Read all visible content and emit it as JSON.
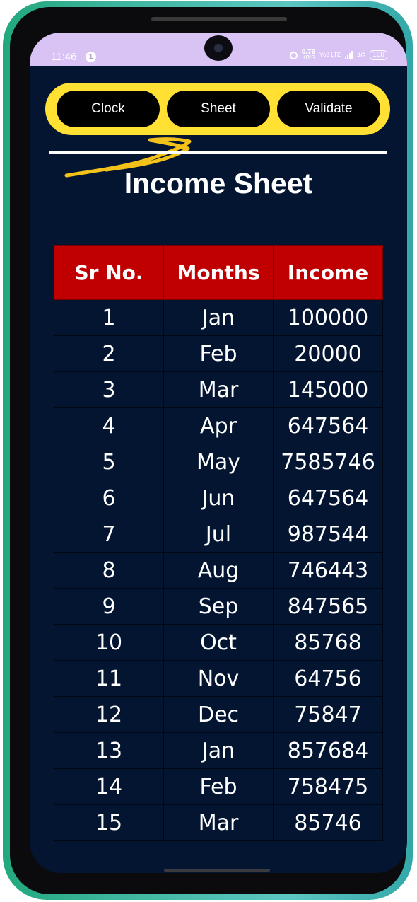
{
  "status_bar": {
    "time": "11:46",
    "notification_count": "1",
    "net_speed_value": "0.76",
    "net_speed_unit": "KB/S",
    "volte": "Vo8 LTE",
    "network_type": "4G",
    "battery": "100"
  },
  "nav": {
    "clock_label": "Clock",
    "sheet_label": "Sheet",
    "validate_label": "Validate"
  },
  "page": {
    "title": "Income Sheet"
  },
  "table": {
    "headers": [
      "Sr No.",
      "Months",
      "Income"
    ],
    "rows": [
      [
        "1",
        "Jan",
        "100000"
      ],
      [
        "2",
        "Feb",
        "20000"
      ],
      [
        "3",
        "Mar",
        "145000"
      ],
      [
        "4",
        "Apr",
        "647564"
      ],
      [
        "5",
        "May",
        "7585746"
      ],
      [
        "6",
        "Jun",
        "647564"
      ],
      [
        "7",
        "Jul",
        "987544"
      ],
      [
        "8",
        "Aug",
        "746443"
      ],
      [
        "9",
        "Sep",
        "847565"
      ],
      [
        "10",
        "Oct",
        "85768"
      ],
      [
        "11",
        "Nov",
        "64756"
      ],
      [
        "12",
        "Dec",
        "75847"
      ],
      [
        "13",
        "Jan",
        "857684"
      ],
      [
        "14",
        "Feb",
        "758475"
      ],
      [
        "15",
        "Mar",
        "85746"
      ]
    ]
  },
  "colors": {
    "background": "#041532",
    "header_red": "#c00000",
    "nav_yellow": "#ffe033",
    "status_purple": "#d9c3f5"
  }
}
